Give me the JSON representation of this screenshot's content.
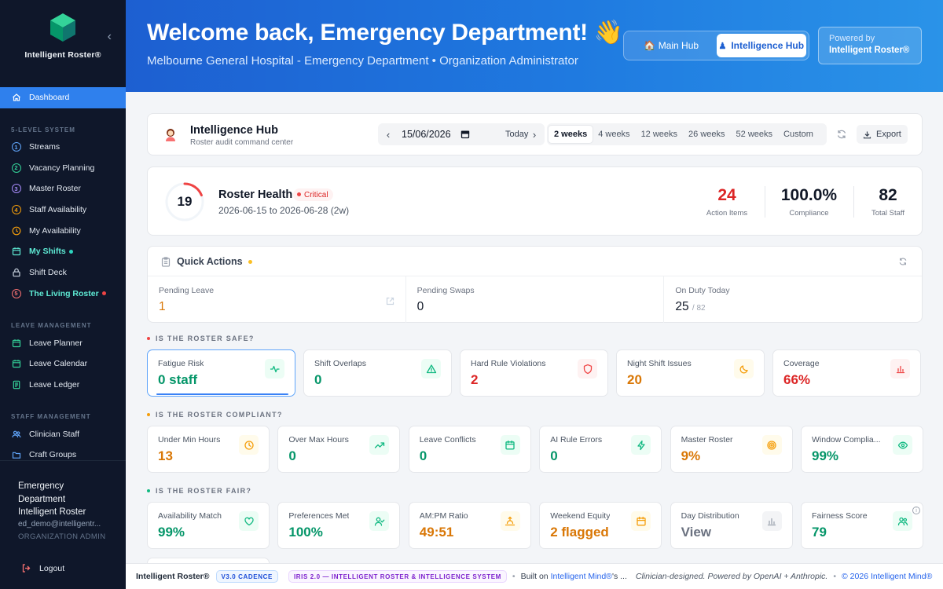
{
  "sidebar": {
    "brand": "Intelligent Roster®",
    "dashboard": "Dashboard",
    "section_system": "5-LEVEL SYSTEM",
    "system_items": [
      {
        "num": "1",
        "label": "Streams"
      },
      {
        "num": "2",
        "label": "Vacancy Planning"
      },
      {
        "num": "3",
        "label": "Master Roster"
      },
      {
        "num": "4",
        "label": "Staff Availability"
      }
    ],
    "my_availability": "My Availability",
    "my_shifts": "My Shifts",
    "shift_deck": "Shift Deck",
    "living_roster_num": "5",
    "living_roster": "The Living Roster",
    "section_leave": "LEAVE MANAGEMENT",
    "leave_items": [
      "Leave Planner",
      "Leave Calendar",
      "Leave Ledger"
    ],
    "section_staff": "STAFF MANAGEMENT",
    "staff_items": [
      "Clinician Staff",
      "Craft Groups"
    ],
    "user": {
      "name_line1": "Emergency",
      "name_line2": "Department",
      "name_line3": "Intelligent Roster",
      "email": "ed_demo@intelligentr...",
      "role": "ORGANIZATION ADMIN"
    },
    "logout": "Logout"
  },
  "header": {
    "title": "Welcome back, Emergency Department! 👋",
    "subtitle": "Melbourne General Hospital - Emergency Department • Organization Administrator",
    "main_hub": "🏠 Main Hub",
    "intelligence_hub": "Intelligence Hub",
    "powered_by": "Powered by",
    "powered_name": "Intelligent Roster®"
  },
  "toolbar": {
    "title": "Intelligence Hub",
    "subtitle": "Roster audit command center",
    "date": "15/06/2026",
    "today": "Today",
    "ranges": [
      "2 weeks",
      "4 weeks",
      "12 weeks",
      "26 weeks",
      "52 weeks",
      "Custom"
    ],
    "active_range": "2 weeks",
    "export": "Export"
  },
  "health": {
    "score": "19",
    "score_fraction": 0.19,
    "title": "Roster Health",
    "badge": "Critical",
    "range": "2026-06-15 to 2026-06-28 (2w)",
    "stats": [
      {
        "value": "24",
        "label": "Action Items",
        "color": "#dc2626"
      },
      {
        "value": "100.0%",
        "label": "Compliance",
        "color": "#111827"
      },
      {
        "value": "82",
        "label": "Total Staff",
        "color": "#111827"
      }
    ]
  },
  "quick_actions": {
    "title": "Quick Actions",
    "items": [
      {
        "label": "Pending Leave",
        "value": "1"
      },
      {
        "label": "Pending Swaps",
        "value": "0"
      },
      {
        "label": "On Duty Today",
        "value": "25",
        "suffix": "/ 82"
      }
    ]
  },
  "sections": {
    "safe": "IS THE ROSTER SAFE?",
    "compliant": "IS THE ROSTER COMPLIANT?",
    "fair": "IS THE ROSTER FAIR?"
  },
  "safe_metrics": [
    {
      "label": "Fatigue Risk",
      "value": "0 staff",
      "tone": "green",
      "icon": "activity-icon"
    },
    {
      "label": "Shift Overlaps",
      "value": "0",
      "tone": "green",
      "icon": "warning-icon"
    },
    {
      "label": "Hard Rule Violations",
      "value": "2",
      "tone": "red",
      "icon": "shield-icon"
    },
    {
      "label": "Night Shift Issues",
      "value": "20",
      "tone": "amber",
      "icon": "moon-icon"
    },
    {
      "label": "Coverage",
      "value": "66%",
      "tone": "red",
      "icon": "bar-chart-icon"
    }
  ],
  "compliant_metrics": [
    {
      "label": "Under Min Hours",
      "value": "13",
      "tone": "amber",
      "icon": "clock-icon"
    },
    {
      "label": "Over Max Hours",
      "value": "0",
      "tone": "green",
      "icon": "trending-up-icon"
    },
    {
      "label": "Leave Conflicts",
      "value": "0",
      "tone": "green",
      "icon": "calendar-icon"
    },
    {
      "label": "AI Rule Errors",
      "value": "0",
      "tone": "green",
      "icon": "bolt-icon"
    },
    {
      "label": "Master Roster",
      "value": "9%",
      "tone": "amber",
      "icon": "target-icon"
    },
    {
      "label": "Window Complia...",
      "value": "99%",
      "tone": "green",
      "icon": "eye-icon"
    }
  ],
  "fair_metrics": [
    {
      "label": "Availability Match",
      "value": "99%",
      "tone": "green",
      "icon": "heart-icon"
    },
    {
      "label": "Preferences Met",
      "value": "100%",
      "tone": "green",
      "icon": "user-check-icon"
    },
    {
      "label": "AM:PM Ratio",
      "value": "49:51",
      "tone": "amber",
      "icon": "sunrise-icon"
    },
    {
      "label": "Weekend Equity",
      "value": "2 flagged",
      "tone": "amber",
      "icon": "calendar-icon"
    },
    {
      "label": "Day Distribution",
      "value": "View",
      "tone": "gray",
      "icon": "bar-chart-icon"
    },
    {
      "label": "Fairness Score",
      "value": "79",
      "tone": "green",
      "icon": "users-icon"
    }
  ],
  "footer": {
    "brand": "Intelligent Roster®",
    "version": "V3.0 CADENCE",
    "iris": "IRIS 2.0 — INTELLIGENT ROSTER & INTELLIGENCE SYSTEM",
    "built_on": "Built on",
    "mind": "Intelligent Mind®",
    "mind_suffix": "'s ...",
    "tagline": "Clinician-designed. Powered by OpenAI + Anthropic.",
    "copyright": "© 2026 Intelligent Mind®"
  },
  "colors": {
    "sidebar_bg": "#0f172a",
    "accent": "#2f80ed",
    "header_start": "#1d5fd1",
    "header_end": "#2a93e8",
    "critical": "#dc2626",
    "good": "#059669",
    "warn": "#d97706"
  }
}
